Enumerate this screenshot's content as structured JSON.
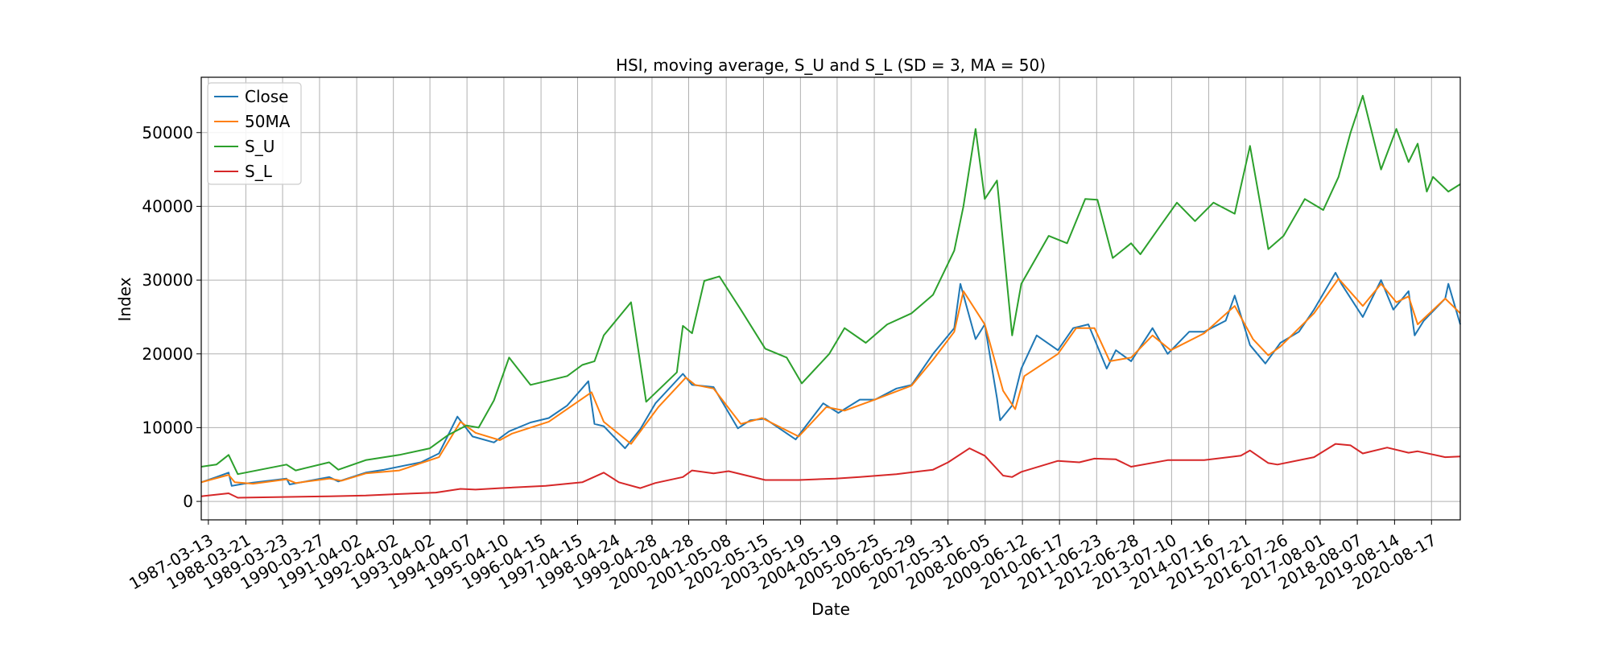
{
  "chart_data": {
    "type": "line",
    "title": "HSI, moving average, S_U and S_L (SD = 3, MA = 50)",
    "xlabel": "Date",
    "ylabel": "Index",
    "xlim": [
      "1987-01-01",
      "2021-05-31"
    ],
    "ylim": [
      -2500,
      57500
    ],
    "yticks": [
      0,
      10000,
      20000,
      30000,
      40000,
      50000
    ],
    "xticks": [
      "1987-03-13",
      "1988-03-21",
      "1989-03-23",
      "1990-03-27",
      "1991-04-02",
      "1992-04-02",
      "1993-04-02",
      "1994-04-07",
      "1995-04-10",
      "1996-04-15",
      "1997-04-15",
      "1998-04-24",
      "1999-04-28",
      "2000-04-28",
      "2001-05-08",
      "2002-05-15",
      "2003-05-19",
      "2004-05-19",
      "2005-05-25",
      "2006-05-29",
      "2007-05-31",
      "2008-06-05",
      "2009-06-12",
      "2010-06-17",
      "2011-06-23",
      "2012-06-28",
      "2013-07-10",
      "2014-07-16",
      "2015-07-21",
      "2016-07-26",
      "2017-08-01",
      "2018-08-07",
      "2019-08-14",
      "2020-08-17"
    ],
    "grid": true,
    "legend_position": "top-left",
    "series": [
      {
        "name": "Close",
        "color": "#1f77b4",
        "x": [
          "1987-01-01",
          "1987-06-01",
          "1987-10-01",
          "1987-11-01",
          "1988-03-01",
          "1989-05-01",
          "1989-06-01",
          "1990-07-01",
          "1990-10-01",
          "1991-07-01",
          "1992-01-01",
          "1993-01-01",
          "1993-07-01",
          "1994-01-01",
          "1994-06-01",
          "1995-01-01",
          "1995-06-01",
          "1996-01-01",
          "1996-07-01",
          "1997-01-01",
          "1997-08-01",
          "1997-10-01",
          "1998-01-01",
          "1998-08-01",
          "1999-01-01",
          "1999-06-01",
          "2000-03-01",
          "2000-06-01",
          "2001-01-01",
          "2001-09-01",
          "2002-01-01",
          "2002-06-01",
          "2003-04-01",
          "2003-06-01",
          "2004-01-01",
          "2004-06-01",
          "2005-01-01",
          "2005-06-01",
          "2006-01-01",
          "2006-06-01",
          "2007-01-01",
          "2007-08-01",
          "2007-10-01",
          "2008-03-01",
          "2008-06-01",
          "2008-10-01",
          "2008-11-01",
          "2009-03-01",
          "2009-06-01",
          "2009-11-01",
          "2010-06-01",
          "2010-11-01",
          "2011-04-01",
          "2011-10-01",
          "2012-01-01",
          "2012-06-01",
          "2013-01-01",
          "2013-06-01",
          "2014-01-01",
          "2014-06-01",
          "2015-01-01",
          "2015-04-01",
          "2015-09-01",
          "2016-02-01",
          "2016-07-01",
          "2017-01-01",
          "2017-06-01",
          "2018-01-01",
          "2018-03-01",
          "2018-10-01",
          "2019-04-01",
          "2019-08-01",
          "2020-01-01",
          "2020-03-01",
          "2020-06-01",
          "2021-01-01",
          "2021-02-01",
          "2021-05-31"
        ],
        "y": [
          2600,
          3300,
          3900,
          2100,
          2400,
          3100,
          2300,
          3300,
          2700,
          3900,
          4300,
          5300,
          6500,
          11500,
          8800,
          8000,
          9500,
          10700,
          11300,
          13000,
          16300,
          10500,
          10200,
          7200,
          9800,
          13300,
          17300,
          15800,
          15500,
          9900,
          11000,
          11200,
          8400,
          9500,
          13300,
          12000,
          13800,
          13800,
          15300,
          15800,
          20000,
          23500,
          29500,
          22000,
          24000,
          14000,
          11000,
          13000,
          18000,
          22500,
          20500,
          23500,
          24000,
          18000,
          20500,
          19000,
          23500,
          20000,
          23000,
          23000,
          24500,
          27900,
          21200,
          18700,
          21500,
          23000,
          26000,
          31000,
          29500,
          25000,
          30000,
          26000,
          28500,
          22500,
          24500,
          27500,
          29500,
          24000
        ]
      },
      {
        "name": "50MA",
        "color": "#ff7f0e",
        "x": [
          "1987-01-01",
          "1987-10-01",
          "1987-12-01",
          "1988-06-01",
          "1989-05-01",
          "1989-08-01",
          "1990-07-01",
          "1990-11-01",
          "1991-07-01",
          "1992-06-01",
          "1993-07-01",
          "1994-02-01",
          "1994-07-01",
          "1995-03-01",
          "1995-07-01",
          "1996-07-01",
          "1997-09-01",
          "1998-01-01",
          "1998-10-01",
          "1999-07-01",
          "2000-04-01",
          "2000-07-01",
          "2001-01-01",
          "2001-10-01",
          "2002-05-01",
          "2003-05-01",
          "2004-02-01",
          "2004-08-01",
          "2005-06-01",
          "2006-06-01",
          "2007-01-01",
          "2007-08-01",
          "2007-11-01",
          "2008-06-01",
          "2008-12-01",
          "2009-04-01",
          "2009-07-01",
          "2010-06-01",
          "2010-12-01",
          "2011-06-01",
          "2011-11-01",
          "2012-06-01",
          "2013-01-01",
          "2013-07-01",
          "2014-06-01",
          "2015-04-01",
          "2015-10-01",
          "2016-03-01",
          "2016-07-01",
          "2017-06-01",
          "2018-02-01",
          "2018-10-01",
          "2019-04-01",
          "2019-09-01",
          "2020-01-01",
          "2020-04-01",
          "2021-01-01",
          "2021-05-31"
        ],
        "y": [
          2600,
          3600,
          2600,
          2400,
          3000,
          2500,
          3100,
          2800,
          3800,
          4200,
          6000,
          10800,
          9300,
          8300,
          9200,
          10800,
          14800,
          10800,
          7800,
          12800,
          16800,
          15800,
          15300,
          10500,
          11300,
          8800,
          12800,
          12300,
          13800,
          15700,
          19200,
          23000,
          28500,
          24000,
          15000,
          12500,
          17000,
          20000,
          23500,
          23500,
          19000,
          19500,
          22500,
          20500,
          22800,
          26500,
          22000,
          19800,
          21000,
          25500,
          30200,
          26500,
          29500,
          27000,
          27800,
          24000,
          27500,
          25500
        ]
      },
      {
        "name": "S_U",
        "color": "#2ca02c",
        "x": [
          "1987-01-01",
          "1987-06-01",
          "1987-10-01",
          "1988-01-01",
          "1989-05-01",
          "1989-08-01",
          "1990-07-01",
          "1990-10-01",
          "1991-07-01",
          "1992-06-01",
          "1993-04-01",
          "1993-10-01",
          "1994-04-01",
          "1994-08-01",
          "1995-01-01",
          "1995-06-01",
          "1996-01-01",
          "1997-01-01",
          "1997-06-01",
          "1997-10-01",
          "1998-01-01",
          "1998-10-01",
          "1999-03-01",
          "2000-01-01",
          "2000-03-01",
          "2000-06-01",
          "2000-10-01",
          "2001-03-01",
          "2001-10-01",
          "2002-06-01",
          "2003-01-01",
          "2003-06-01",
          "2004-03-01",
          "2004-08-01",
          "2005-03-01",
          "2005-10-01",
          "2006-06-01",
          "2007-01-01",
          "2007-08-01",
          "2007-11-01",
          "2008-03-01",
          "2008-06-01",
          "2008-10-01",
          "2009-03-01",
          "2009-06-01",
          "2010-03-01",
          "2010-09-01",
          "2011-03-01",
          "2011-07-01",
          "2011-12-01",
          "2012-06-01",
          "2012-09-01",
          "2013-03-01",
          "2013-09-01",
          "2014-03-01",
          "2014-09-01",
          "2015-04-01",
          "2015-09-01",
          "2016-03-01",
          "2016-08-01",
          "2017-03-01",
          "2017-09-01",
          "2018-02-01",
          "2018-06-01",
          "2018-10-01",
          "2019-04-01",
          "2019-09-01",
          "2020-01-01",
          "2020-04-01",
          "2020-07-01",
          "2020-09-01",
          "2021-02-01",
          "2021-05-31"
        ],
        "y": [
          4700,
          5000,
          6300,
          3700,
          5000,
          4200,
          5300,
          4300,
          5600,
          6300,
          7200,
          9000,
          10300,
          10000,
          13700,
          19500,
          15800,
          17000,
          18500,
          19000,
          22500,
          27000,
          13500,
          17500,
          23800,
          22800,
          29900,
          30500,
          26000,
          20700,
          19500,
          16000,
          20000,
          23500,
          21500,
          24000,
          25500,
          28000,
          34000,
          40000,
          50500,
          41000,
          43500,
          22500,
          29500,
          36000,
          35000,
          41000,
          40900,
          33000,
          35000,
          33500,
          37000,
          40500,
          38000,
          40500,
          39000,
          48200,
          34200,
          36000,
          41000,
          39500,
          44000,
          50000,
          55000,
          45000,
          50500,
          46000,
          48500,
          42000,
          44000,
          42000,
          43000
        ]
      },
      {
        "name": "S_L",
        "color": "#d62728",
        "x": [
          "1987-01-01",
          "1987-10-01",
          "1988-01-01",
          "1990-07-01",
          "1991-07-01",
          "1992-06-01",
          "1993-06-01",
          "1994-02-01",
          "1994-07-01",
          "1995-03-01",
          "1996-06-01",
          "1997-06-01",
          "1998-01-01",
          "1998-06-01",
          "1999-01-01",
          "1999-06-01",
          "2000-03-01",
          "2000-06-01",
          "2001-01-01",
          "2001-06-01",
          "2002-06-01",
          "2003-05-01",
          "2004-05-01",
          "2005-01-01",
          "2006-01-01",
          "2007-01-01",
          "2007-06-01",
          "2008-01-01",
          "2008-06-01",
          "2008-12-01",
          "2009-03-01",
          "2009-06-01",
          "2010-06-01",
          "2011-01-01",
          "2011-06-01",
          "2012-01-01",
          "2012-06-01",
          "2013-06-01",
          "2014-06-01",
          "2015-06-01",
          "2015-09-01",
          "2016-03-01",
          "2016-06-01",
          "2017-06-01",
          "2018-01-01",
          "2018-06-01",
          "2018-10-01",
          "2019-06-01",
          "2020-01-01",
          "2020-04-01",
          "2021-01-01",
          "2021-05-31"
        ],
        "y": [
          700,
          1100,
          500,
          700,
          800,
          1000,
          1200,
          1700,
          1600,
          1800,
          2100,
          2600,
          3900,
          2600,
          1800,
          2500,
          3300,
          4200,
          3800,
          4100,
          2900,
          2900,
          3100,
          3300,
          3700,
          4300,
          5300,
          7200,
          6200,
          3500,
          3300,
          4000,
          5500,
          5300,
          5800,
          5700,
          4700,
          5600,
          5600,
          6200,
          6900,
          5200,
          5000,
          6000,
          7800,
          7600,
          6500,
          7300,
          6600,
          6800,
          6000,
          6100
        ]
      }
    ]
  }
}
